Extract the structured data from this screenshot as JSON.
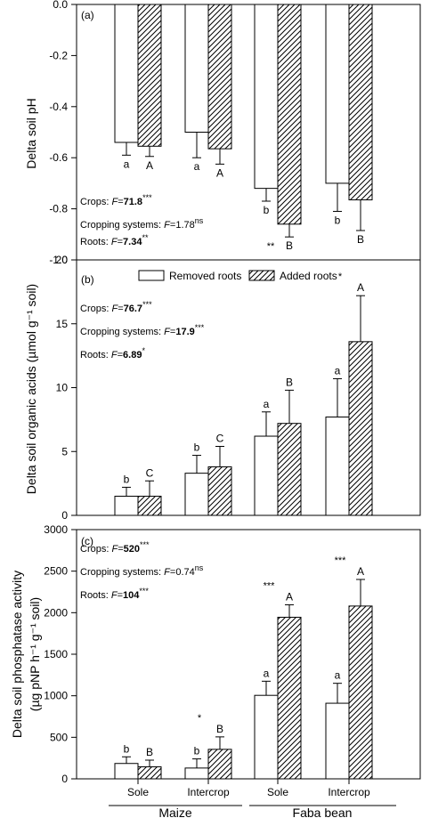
{
  "chart_data": [
    {
      "type": "bar",
      "panel": "(a)",
      "ylabel": "Delta soil pH",
      "ylim": [
        -1.0,
        0.0
      ],
      "yticks": [
        "-1.0",
        "-0.8",
        "-0.6",
        "-0.4",
        "-0.2",
        "0.0"
      ],
      "categories": [
        "Maize Sole",
        "Maize Intercrop",
        "Faba bean Sole",
        "Faba bean Intercrop"
      ],
      "series": [
        {
          "name": "Removed roots",
          "values": [
            -0.54,
            -0.5,
            -0.72,
            -0.7
          ],
          "err": [
            0.05,
            0.1,
            0.05,
            0.11
          ],
          "letters": [
            "a",
            "a",
            "b",
            "b"
          ]
        },
        {
          "name": "Added roots",
          "values": [
            -0.555,
            -0.565,
            -0.86,
            -0.765
          ],
          "err": [
            0.04,
            0.06,
            0.05,
            0.12
          ],
          "letters": [
            "A",
            "A",
            "B",
            "B"
          ]
        }
      ],
      "stars": [
        "",
        "",
        "**",
        ""
      ],
      "stats": [
        {
          "label": "Crops: ",
          "F": "71.8",
          "sig": "***",
          "bold": true
        },
        {
          "label": "Cropping systems: ",
          "F": "1.78",
          "sig": "ns",
          "bold": false
        },
        {
          "label": "Roots: ",
          "F": "7.34",
          "sig": "**",
          "bold": true
        }
      ]
    },
    {
      "type": "bar",
      "panel": "(b)",
      "ylabel": "Delta soil organic acids (µmol g⁻¹ soil)",
      "ylim": [
        0,
        20
      ],
      "yticks": [
        "0",
        "5",
        "10",
        "15",
        "20"
      ],
      "categories": [
        "Maize Sole",
        "Maize Intercrop",
        "Faba bean Sole",
        "Faba bean Intercrop"
      ],
      "series": [
        {
          "name": "Removed roots",
          "values": [
            1.5,
            3.3,
            6.2,
            7.7
          ],
          "err": [
            0.7,
            1.4,
            1.9,
            3.0
          ],
          "letters": [
            "b",
            "b",
            "a",
            "a"
          ]
        },
        {
          "name": "Added roots",
          "values": [
            1.5,
            3.8,
            7.2,
            13.6
          ],
          "err": [
            1.2,
            1.6,
            2.6,
            3.6
          ],
          "letters": [
            "C",
            "C",
            "B",
            "A"
          ]
        }
      ],
      "stars": [
        "",
        "",
        "",
        "*"
      ],
      "legend": [
        "Removed roots",
        "Added roots"
      ],
      "stats": [
        {
          "label": "Crops: ",
          "F": "76.7",
          "sig": "***",
          "bold": true
        },
        {
          "label": "Cropping systems: ",
          "F": "17.9",
          "sig": "***",
          "bold": true
        },
        {
          "label": "Roots: ",
          "F": "6.89",
          "sig": "*",
          "bold": true
        }
      ]
    },
    {
      "type": "bar",
      "panel": "(c)",
      "ylabel_line1": "Delta soil phosphatase activity",
      "ylabel_line2": "(µg pNP h⁻¹ g⁻¹ soil)",
      "ylim": [
        0,
        3000
      ],
      "yticks": [
        "0",
        "500",
        "1000",
        "1500",
        "2000",
        "2500",
        "3000"
      ],
      "categories": [
        "Maize Sole",
        "Maize Intercrop",
        "Faba bean Sole",
        "Faba bean Intercrop"
      ],
      "series": [
        {
          "name": "Removed roots",
          "values": [
            185,
            130,
            1005,
            910
          ],
          "err": [
            80,
            110,
            170,
            240
          ],
          "letters": [
            "b",
            "b",
            "a",
            "a"
          ]
        },
        {
          "name": "Added roots",
          "values": [
            145,
            355,
            1945,
            2080
          ],
          "err": [
            80,
            150,
            150,
            320
          ],
          "letters": [
            "B",
            "B",
            "A",
            "A"
          ]
        }
      ],
      "stars": [
        "",
        "*",
        "***",
        "***"
      ],
      "stats": [
        {
          "label": "Crops: ",
          "F": "520",
          "sig": "***",
          "bold": true
        },
        {
          "label": "Cropping systems: ",
          "F": "0.74",
          "sig": "ns",
          "bold": false
        },
        {
          "label": "Roots: ",
          "F": "104",
          "sig": "***",
          "bold": true
        }
      ]
    }
  ],
  "x_axis": {
    "sub_labels": [
      "Sole",
      "Intercrop",
      "Sole",
      "Intercrop"
    ],
    "groups": [
      "Maize",
      "Faba bean"
    ]
  }
}
